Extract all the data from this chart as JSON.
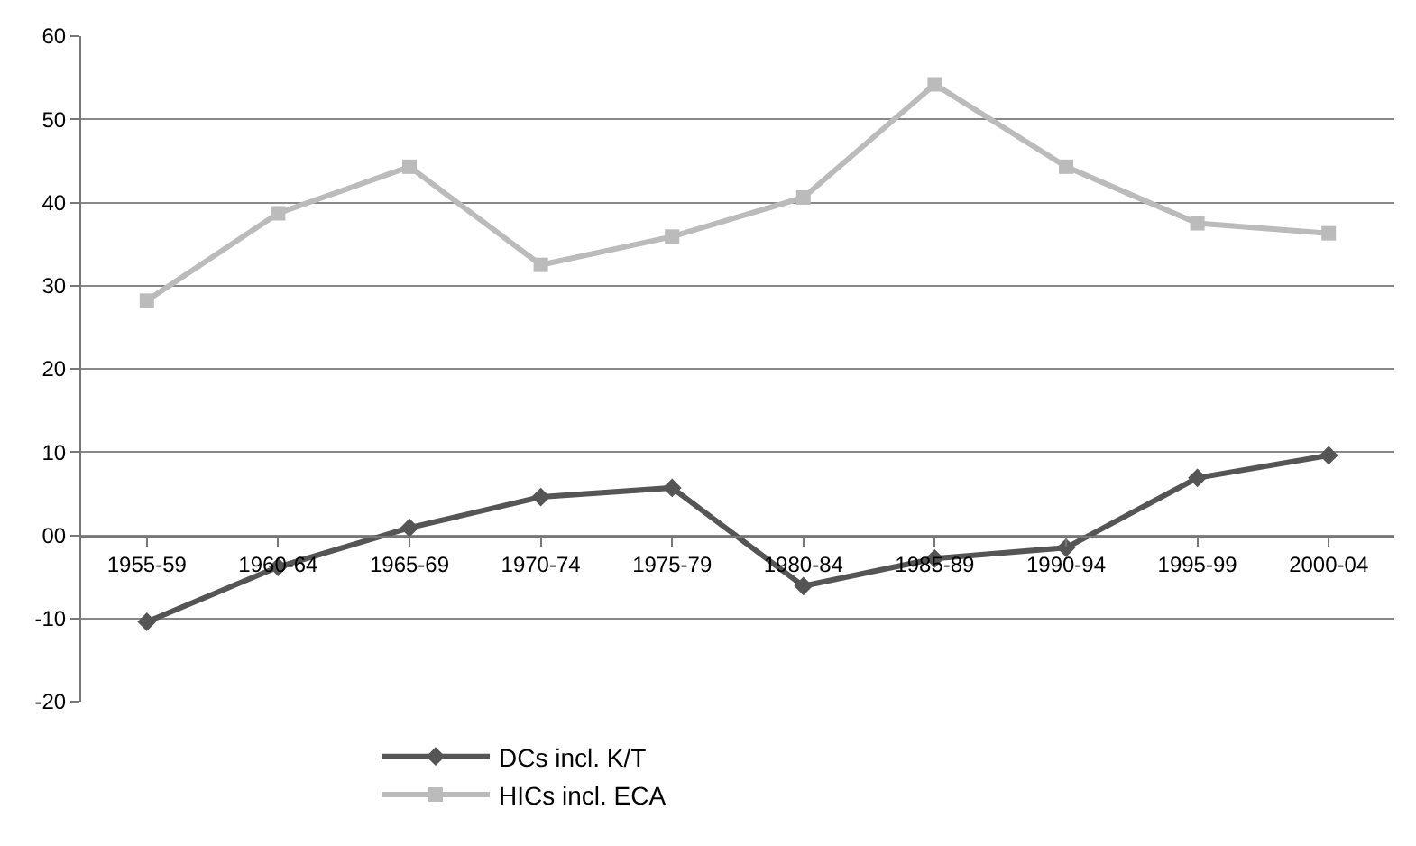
{
  "chart_data": {
    "type": "line",
    "categories": [
      "1955-59",
      "1960-64",
      "1965-69",
      "1970-74",
      "1975-79",
      "1980-84",
      "1985-89",
      "1990-94",
      "1995-99",
      "2000-04"
    ],
    "series": [
      {
        "name": "DCs incl. K/T",
        "color": "#555555",
        "marker": "diamond",
        "values": [
          -10.4,
          -3.8,
          0.9,
          4.6,
          5.7,
          -6.1,
          -2.8,
          -1.5,
          6.9,
          9.6
        ]
      },
      {
        "name": "HICs incl. ECA",
        "color": "#bbbbbb",
        "marker": "square",
        "values": [
          28.2,
          38.7,
          44.3,
          32.5,
          35.9,
          40.6,
          54.2,
          44.3,
          37.5,
          36.3
        ]
      }
    ],
    "ylim": [
      -20,
      60
    ],
    "yticks": [
      -20,
      -10,
      {
        "value": 0,
        "label": "00"
      },
      10,
      20,
      30,
      40,
      50,
      60
    ],
    "grid": "y",
    "legend": "bottom",
    "line_style": "solid"
  }
}
